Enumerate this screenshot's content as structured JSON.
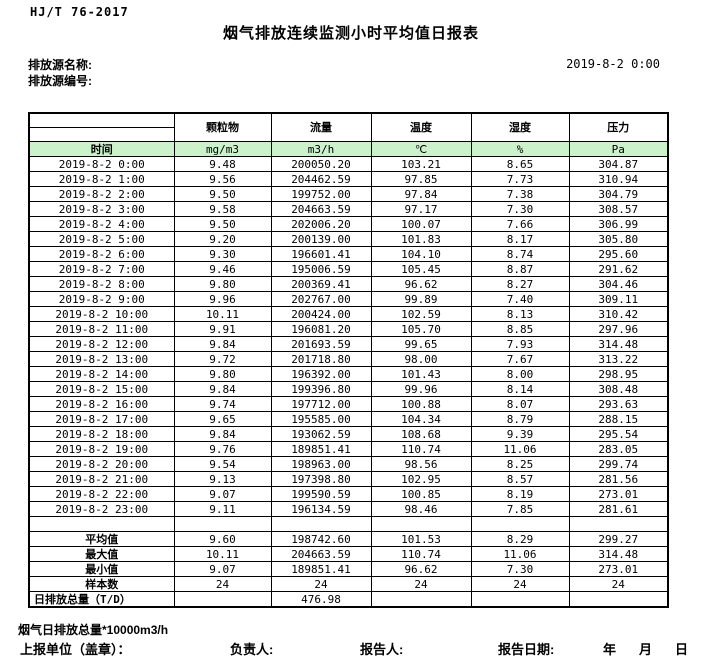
{
  "page": {
    "doc_code": "HJ/T 76-2017",
    "title": "烟气排放连续监测小时平均值日报表",
    "source_name_label": "排放源名称:",
    "source_code_label": "排放源编号:",
    "report_datetime": "2019-8-2 0:00"
  },
  "table": {
    "time_header": "时间",
    "columns": [
      "颗粒物",
      "流量",
      "温度",
      "湿度",
      "压力"
    ],
    "units": [
      "mg/m3",
      "m3/h",
      "℃",
      "%",
      "Pa"
    ],
    "unit_row_bg": "#ccf2cc",
    "rows": [
      {
        "time": "2019-8-2 0:00",
        "values": [
          "9.48",
          "200050.20",
          "103.21",
          "8.65",
          "304.87"
        ]
      },
      {
        "time": "2019-8-2 1:00",
        "values": [
          "9.56",
          "204462.59",
          "97.85",
          "7.73",
          "310.94"
        ]
      },
      {
        "time": "2019-8-2 2:00",
        "values": [
          "9.50",
          "199752.00",
          "97.84",
          "7.38",
          "304.79"
        ]
      },
      {
        "time": "2019-8-2 3:00",
        "values": [
          "9.58",
          "204663.59",
          "97.17",
          "7.30",
          "308.57"
        ]
      },
      {
        "time": "2019-8-2 4:00",
        "values": [
          "9.50",
          "202006.20",
          "100.07",
          "7.66",
          "306.99"
        ]
      },
      {
        "time": "2019-8-2 5:00",
        "values": [
          "9.20",
          "200139.00",
          "101.83",
          "8.17",
          "305.80"
        ]
      },
      {
        "time": "2019-8-2 6:00",
        "values": [
          "9.30",
          "196601.41",
          "104.10",
          "8.74",
          "295.60"
        ]
      },
      {
        "time": "2019-8-2 7:00",
        "values": [
          "9.46",
          "195006.59",
          "105.45",
          "8.87",
          "291.62"
        ]
      },
      {
        "time": "2019-8-2 8:00",
        "values": [
          "9.80",
          "200369.41",
          "96.62",
          "8.27",
          "304.46"
        ]
      },
      {
        "time": "2019-8-2 9:00",
        "values": [
          "9.96",
          "202767.00",
          "99.89",
          "7.40",
          "309.11"
        ]
      },
      {
        "time": "2019-8-2 10:00",
        "values": [
          "10.11",
          "200424.00",
          "102.59",
          "8.13",
          "310.42"
        ]
      },
      {
        "time": "2019-8-2 11:00",
        "values": [
          "9.91",
          "196081.20",
          "105.70",
          "8.85",
          "297.96"
        ]
      },
      {
        "time": "2019-8-2 12:00",
        "values": [
          "9.84",
          "201693.59",
          "99.65",
          "7.93",
          "314.48"
        ]
      },
      {
        "time": "2019-8-2 13:00",
        "values": [
          "9.72",
          "201718.80",
          "98.00",
          "7.67",
          "313.22"
        ]
      },
      {
        "time": "2019-8-2 14:00",
        "values": [
          "9.80",
          "196392.00",
          "101.43",
          "8.00",
          "298.95"
        ]
      },
      {
        "time": "2019-8-2 15:00",
        "values": [
          "9.84",
          "199396.80",
          "99.96",
          "8.14",
          "308.48"
        ]
      },
      {
        "time": "2019-8-2 16:00",
        "values": [
          "9.74",
          "197712.00",
          "100.88",
          "8.07",
          "293.63"
        ]
      },
      {
        "time": "2019-8-2 17:00",
        "values": [
          "9.65",
          "195585.00",
          "104.34",
          "8.79",
          "288.15"
        ]
      },
      {
        "time": "2019-8-2 18:00",
        "values": [
          "9.84",
          "193062.59",
          "108.68",
          "9.39",
          "295.54"
        ]
      },
      {
        "time": "2019-8-2 19:00",
        "values": [
          "9.76",
          "189851.41",
          "110.74",
          "11.06",
          "283.05"
        ]
      },
      {
        "time": "2019-8-2 20:00",
        "values": [
          "9.54",
          "198963.00",
          "98.56",
          "8.25",
          "299.74"
        ]
      },
      {
        "time": "2019-8-2 21:00",
        "values": [
          "9.13",
          "197398.80",
          "102.95",
          "8.57",
          "281.56"
        ]
      },
      {
        "time": "2019-8-2 22:00",
        "values": [
          "9.07",
          "199590.59",
          "100.85",
          "8.19",
          "273.01"
        ]
      },
      {
        "time": "2019-8-2 23:00",
        "values": [
          "9.11",
          "196134.59",
          "98.46",
          "7.85",
          "281.61"
        ]
      }
    ],
    "summary": [
      {
        "label": "平均值",
        "values": [
          "9.60",
          "198742.60",
          "101.53",
          "8.29",
          "299.27"
        ]
      },
      {
        "label": "最大值",
        "values": [
          "10.11",
          "204663.59",
          "110.74",
          "11.06",
          "314.48"
        ]
      },
      {
        "label": "最小值",
        "values": [
          "9.07",
          "189851.41",
          "96.62",
          "7.30",
          "273.01"
        ]
      },
      {
        "label": "样本数",
        "values": [
          "24",
          "24",
          "24",
          "24",
          "24"
        ]
      },
      {
        "label": "日排放总量（T/D）",
        "values": [
          "",
          "476.98",
          "",
          "",
          ""
        ]
      }
    ]
  },
  "footer": {
    "note": "烟气日排放总量*10000m3/h",
    "report_unit_label": "上报单位（盖章）：",
    "responsible_label": "负责人:",
    "reporter_label": "报告人:",
    "report_date_label": "报告日期:",
    "year_label": "年",
    "month_label": "月",
    "day_label": "日"
  }
}
